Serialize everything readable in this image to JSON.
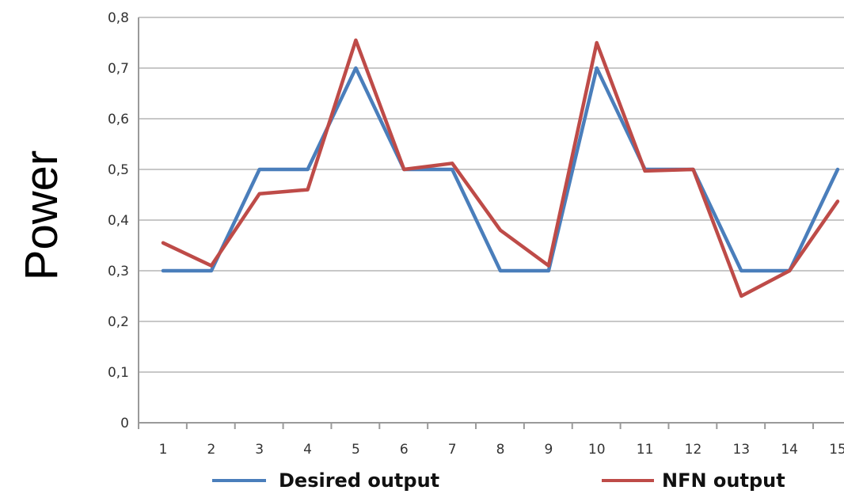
{
  "chart_data": {
    "type": "line",
    "ylabel": "Power",
    "xlabel": "",
    "title": "",
    "categories": [
      "1",
      "2",
      "3",
      "4",
      "5",
      "6",
      "7",
      "8",
      "9",
      "10",
      "11",
      "12",
      "13",
      "14",
      "15"
    ],
    "y_ticks": [
      "0",
      "0,1",
      "0,2",
      "0,3",
      "0,4",
      "0,5",
      "0,6",
      "0,7",
      "0,8"
    ],
    "ylim": [
      0,
      0.8
    ],
    "grid": true,
    "legend_position": "bottom",
    "series": [
      {
        "name": "Desired output",
        "color": "#4a7ebb",
        "values": [
          0.3,
          0.3,
          0.5,
          0.5,
          0.7,
          0.5,
          0.5,
          0.3,
          0.3,
          0.7,
          0.5,
          0.5,
          0.3,
          0.3,
          0.5
        ]
      },
      {
        "name": "NFN output",
        "color": "#be4b48",
        "values": [
          0.355,
          0.31,
          0.452,
          0.46,
          0.755,
          0.5,
          0.512,
          0.38,
          0.31,
          0.75,
          0.497,
          0.5,
          0.25,
          0.3,
          0.437
        ]
      }
    ]
  }
}
